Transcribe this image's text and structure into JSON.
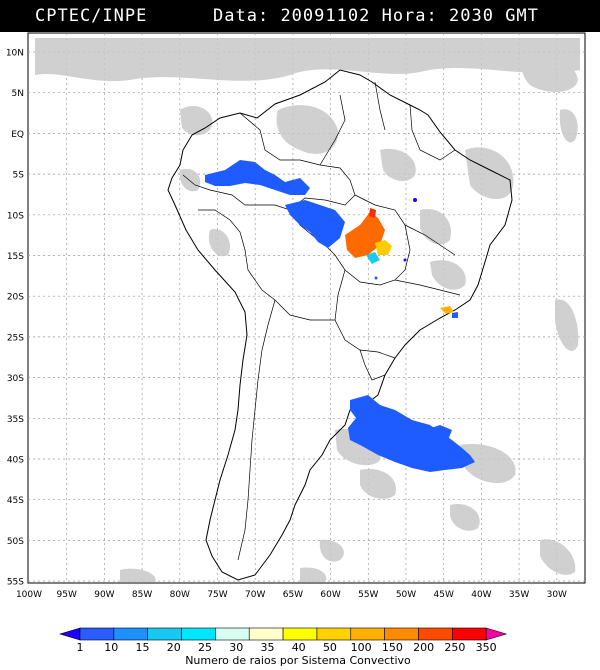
{
  "header": {
    "org": "CPTEC/INPE",
    "date_label": "Data:",
    "date": "20091102",
    "time_label": "Hora:",
    "time": "2030 GMT"
  },
  "axes": {
    "lat_labels": [
      "10N",
      "5N",
      "EQ",
      "5S",
      "10S",
      "15S",
      "20S",
      "25S",
      "30S",
      "35S",
      "40S",
      "45S",
      "50S",
      "55S"
    ],
    "lon_labels": [
      "100W",
      "95W",
      "90W",
      "85W",
      "80W",
      "75W",
      "70W",
      "65W",
      "60W",
      "55W",
      "50W",
      "45W",
      "40W",
      "35W",
      "30W"
    ]
  },
  "colorbar": {
    "ticks": [
      "1",
      "10",
      "15",
      "20",
      "25",
      "30",
      "35",
      "40",
      "50",
      "100",
      "150",
      "200",
      "250",
      "350"
    ],
    "colors": [
      "#1f00ff",
      "#2b5cff",
      "#1e90ff",
      "#19c8f0",
      "#00e6ff",
      "#d6fff2",
      "#ffffcc",
      "#ffff00",
      "#ffd200",
      "#ffb000",
      "#ff8a00",
      "#ff4a00",
      "#ff0000",
      "#ff00a0"
    ],
    "label": "Numero de raios por Sistema Convectivo"
  },
  "legend_colors": {
    "cloud": "#c8c8c8",
    "blue": "#1f5cff",
    "orange": "#ff6a00",
    "yellow": "#ffcc00",
    "cyan": "#1ec8f0"
  }
}
